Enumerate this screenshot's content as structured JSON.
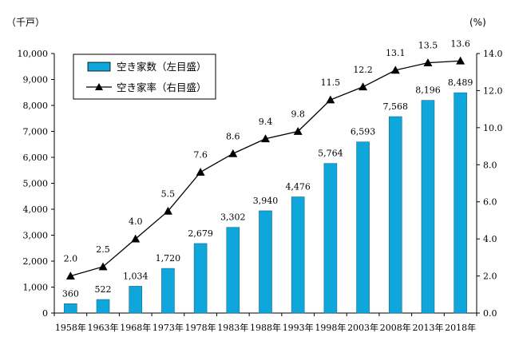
{
  "chart_data": {
    "type": "bar",
    "categories": [
      "1958年",
      "1963年",
      "1968年",
      "1973年",
      "1978年",
      "1983年",
      "1988年",
      "1993年",
      "1998年",
      "2003年",
      "2008年",
      "2013年",
      "2018年"
    ],
    "series": [
      {
        "name": "空き家数（左目盛）",
        "type": "bar",
        "axis": "left",
        "color": "#0fa6dc",
        "values": [
          360,
          522,
          1034,
          1720,
          2679,
          3302,
          3940,
          4476,
          5764,
          6593,
          7568,
          8196,
          8489
        ],
        "labels": [
          "360",
          "522",
          "1,034",
          "1,720",
          "2,679",
          "3,302",
          "3,940",
          "4,476",
          "5,764",
          "6,593",
          "7,568",
          "8,196",
          "8,489"
        ]
      },
      {
        "name": "空き家率（右目盛）",
        "type": "line",
        "axis": "right",
        "color": "#000000",
        "marker": "triangle",
        "values": [
          2.0,
          2.5,
          4.0,
          5.5,
          7.6,
          8.6,
          9.4,
          9.8,
          11.5,
          12.2,
          13.1,
          13.5,
          13.6
        ],
        "labels": [
          "2.0",
          "2.5",
          "4.0",
          "5.5",
          "7.6",
          "8.6",
          "9.4",
          "9.8",
          "11.5",
          "12.2",
          "13.1",
          "13.5",
          "13.6"
        ]
      }
    ],
    "y_left": {
      "unit": "（千戸）",
      "ylim": [
        0,
        10000
      ],
      "ticks": [
        0,
        1000,
        2000,
        3000,
        4000,
        5000,
        6000,
        7000,
        8000,
        9000,
        10000
      ],
      "tick_labels": [
        "0",
        "1,000",
        "2,000",
        "3,000",
        "4,000",
        "5,000",
        "6,000",
        "7,000",
        "8,000",
        "9,000",
        "10,000"
      ]
    },
    "y_right": {
      "unit": "(%)",
      "ylim": [
        0,
        14
      ],
      "ticks": [
        0,
        2,
        4,
        6,
        8,
        10,
        12,
        14
      ],
      "tick_labels": [
        "0.0",
        "2.0",
        "4.0",
        "6.0",
        "8.0",
        "10.0",
        "12.0",
        "14.0"
      ]
    },
    "grid": false,
    "legend": {
      "placement": "top-left",
      "items": [
        "空き家数（左目盛）",
        "空き家率（右目盛）"
      ]
    }
  }
}
